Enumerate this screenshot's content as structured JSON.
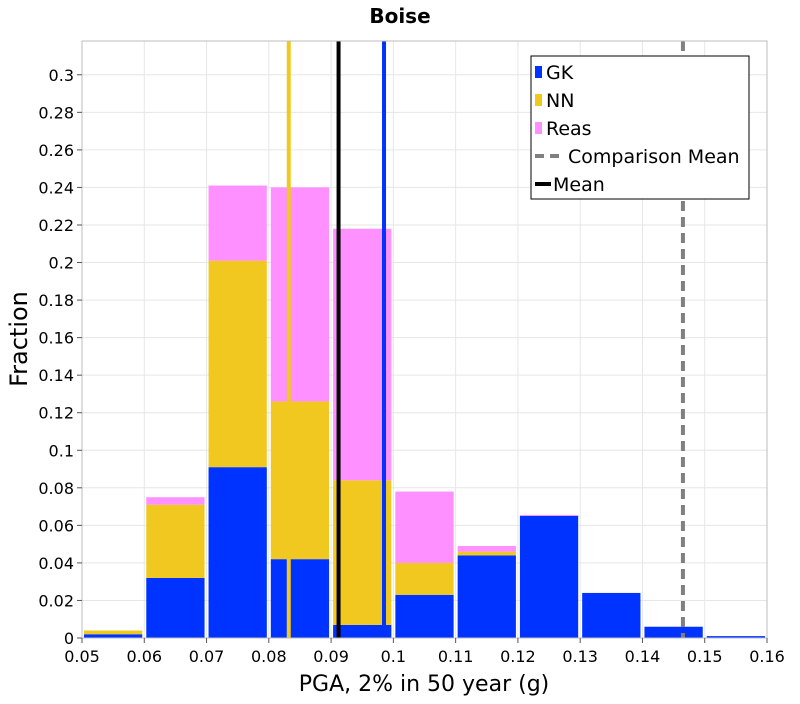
{
  "chart_data": {
    "type": "bar",
    "stacked": true,
    "title": "Boise",
    "xlabel": "PGA, 2% in 50 year (g)",
    "ylabel": "Fraction",
    "xlim": [
      0.05,
      0.16
    ],
    "ylim": [
      0,
      0.318
    ],
    "grid": true,
    "legend_position": "top-right",
    "x_ticks": [
      "0.05",
      "0.06",
      "0.07",
      "0.08",
      "0.09",
      "0.1",
      "0.11",
      "0.12",
      "0.13",
      "0.14",
      "0.15",
      "0.16"
    ],
    "y_ticks": [
      "0",
      "0.02",
      "0.04",
      "0.06",
      "0.08",
      "0.1",
      "0.12",
      "0.14",
      "0.16",
      "0.18",
      "0.2",
      "0.22",
      "0.24",
      "0.26",
      "0.28",
      "0.3"
    ],
    "bins": [
      [
        0.05,
        0.06
      ],
      [
        0.06,
        0.07
      ],
      [
        0.07,
        0.08
      ],
      [
        0.08,
        0.09
      ],
      [
        0.09,
        0.1
      ],
      [
        0.1,
        0.11
      ],
      [
        0.11,
        0.12
      ],
      [
        0.12,
        0.13
      ],
      [
        0.13,
        0.14
      ],
      [
        0.14,
        0.15
      ],
      [
        0.15,
        0.16
      ]
    ],
    "series": [
      {
        "name": "GK",
        "color": "#0033ff",
        "values": [
          0.002,
          0.032,
          0.091,
          0.042,
          0.007,
          0.023,
          0.044,
          0.065,
          0.024,
          0.006,
          0.001
        ]
      },
      {
        "name": "NN",
        "color": "#f0c820",
        "values": [
          0.002,
          0.039,
          0.11,
          0.084,
          0.077,
          0.017,
          0.002,
          0.0,
          0.0,
          0.0,
          0.0
        ]
      },
      {
        "name": "Reas",
        "color": "#ff90ff",
        "values": [
          0.0,
          0.004,
          0.04,
          0.114,
          0.134,
          0.038,
          0.003,
          0.0005,
          0.0,
          0.0,
          0.0
        ]
      }
    ],
    "reference_lines": [
      {
        "name": "GK mean",
        "x": 0.0985,
        "color": "#0033ff",
        "style": "solid"
      },
      {
        "name": "NN mean",
        "x": 0.0832,
        "color": "#f0c820",
        "style": "solid"
      },
      {
        "name": "Mean",
        "x": 0.0912,
        "color": "#000000",
        "style": "solid"
      },
      {
        "name": "Comparison Mean",
        "x": 0.1465,
        "color": "#808080",
        "style": "dashed"
      }
    ],
    "legend": [
      {
        "label": "GK",
        "kind": "patch",
        "color": "#0033ff"
      },
      {
        "label": "NN",
        "kind": "patch",
        "color": "#f0c820"
      },
      {
        "label": "Reas",
        "kind": "patch",
        "color": "#ff90ff"
      },
      {
        "label": "Comparison Mean",
        "kind": "dashed",
        "color": "#808080"
      },
      {
        "label": "Mean",
        "kind": "line",
        "color": "#000000"
      }
    ]
  }
}
